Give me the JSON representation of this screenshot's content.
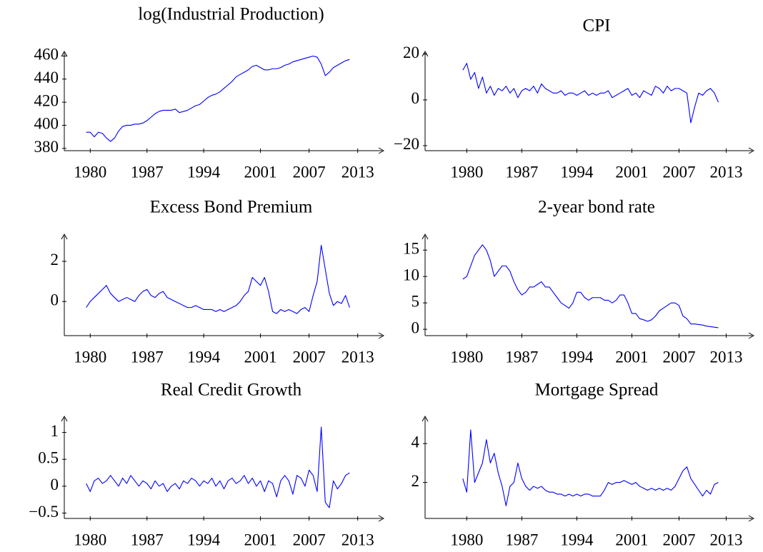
{
  "chart_data": [
    {
      "type": "line",
      "title": "log(Industrial Production)",
      "color": "#0000ff",
      "x": [
        1979.5,
        1980,
        1980.5,
        1981,
        1981.5,
        1982,
        1982.5,
        1983,
        1983.5,
        1984,
        1984.5,
        1985,
        1985.5,
        1986,
        1986.5,
        1987,
        1987.5,
        1988,
        1988.5,
        1989,
        1989.5,
        1990,
        1990.5,
        1991,
        1991.5,
        1992,
        1992.5,
        1993,
        1993.5,
        1994,
        1994.5,
        1995,
        1995.5,
        1996,
        1996.5,
        1997,
        1997.5,
        1998,
        1998.5,
        1999,
        1999.5,
        2000,
        2000.5,
        2001,
        2001.5,
        2002,
        2002.5,
        2003,
        2003.5,
        2004,
        2004.5,
        2005,
        2005.5,
        2006,
        2006.5,
        2007,
        2007.5,
        2008,
        2008.5,
        2009,
        2009.5,
        2010,
        2010.5,
        2011,
        2011.5,
        2012
      ],
      "values": [
        394,
        394,
        390,
        394,
        393,
        389,
        386,
        389,
        395,
        399,
        400,
        400,
        401,
        401,
        402,
        404,
        407,
        410,
        412,
        413,
        413,
        413,
        414,
        411,
        412,
        413,
        415,
        417,
        418,
        421,
        424,
        426,
        427,
        429,
        432,
        435,
        438,
        442,
        444,
        446,
        448,
        451,
        452,
        450,
        448,
        448,
        449,
        449,
        450,
        452,
        453,
        455,
        456,
        457,
        458,
        459,
        460,
        459,
        453,
        443,
        446,
        450,
        452,
        454,
        456,
        457
      ],
      "xlim": [
        1976.8,
        2016.2
      ],
      "xticks": [
        1980,
        1987,
        1994,
        2001,
        2007,
        2013
      ],
      "ylim": [
        378,
        464
      ],
      "yticks": [
        380,
        400,
        420,
        440,
        460
      ]
    },
    {
      "type": "line",
      "title": "CPI",
      "color": "#0000ff",
      "x": [
        1979.5,
        1980,
        1980.5,
        1981,
        1981.5,
        1982,
        1982.5,
        1983,
        1983.5,
        1984,
        1984.5,
        1985,
        1985.5,
        1986,
        1986.5,
        1987,
        1987.5,
        1988,
        1988.5,
        1989,
        1989.5,
        1990,
        1990.5,
        1991,
        1991.5,
        1992,
        1992.5,
        1993,
        1993.5,
        1994,
        1994.5,
        1995,
        1995.5,
        1996,
        1996.5,
        1997,
        1997.5,
        1998,
        1998.5,
        1999,
        1999.5,
        2000,
        2000.5,
        2001,
        2001.5,
        2002,
        2002.5,
        2003,
        2003.5,
        2004,
        2004.5,
        2005,
        2005.5,
        2006,
        2006.5,
        2007,
        2007.5,
        2008,
        2008.5,
        2009,
        2009.5,
        2010,
        2010.5,
        2011,
        2011.5,
        2012
      ],
      "values": [
        13,
        16,
        9,
        12,
        5,
        10,
        3,
        6,
        2,
        5,
        4,
        6,
        3,
        5,
        1,
        4,
        5,
        4,
        6,
        3,
        7,
        5,
        4,
        3,
        3,
        4,
        2,
        3,
        3,
        2,
        3,
        4,
        2,
        3,
        2,
        3,
        3,
        4,
        1,
        2,
        3,
        4,
        5,
        2,
        3,
        1,
        4,
        3,
        2,
        6,
        5,
        3,
        6,
        4,
        5,
        5,
        4,
        3,
        -10,
        -3,
        3,
        2,
        4,
        5,
        3,
        -1
      ],
      "xlim": [
        1974.7,
        2016.5
      ],
      "xticks": [
        1980,
        1987,
        1994,
        2001,
        2007,
        2013
      ],
      "ylim": [
        -22.2,
        21.2
      ],
      "yticks": [
        {
          "value": -20,
          "label": "−20"
        },
        0,
        20
      ]
    },
    {
      "type": "line",
      "title": "Excess Bond Premium",
      "color": "#0000ff",
      "x": [
        1979.5,
        1980,
        1980.5,
        1981,
        1981.5,
        1982,
        1982.5,
        1983,
        1983.5,
        1984,
        1984.5,
        1985,
        1985.5,
        1986,
        1986.5,
        1987,
        1987.5,
        1988,
        1988.5,
        1989,
        1989.5,
        1990,
        1990.5,
        1991,
        1991.5,
        1992,
        1992.5,
        1993,
        1993.5,
        1994,
        1994.5,
        1995,
        1995.5,
        1996,
        1996.5,
        1997,
        1997.5,
        1998,
        1998.5,
        1999,
        1999.5,
        2000,
        2000.5,
        2001,
        2001.5,
        2002,
        2002.5,
        2003,
        2003.5,
        2004,
        2004.5,
        2005,
        2005.5,
        2006,
        2006.5,
        2007,
        2007.5,
        2008,
        2008.5,
        2009,
        2009.5,
        2010,
        2010.5,
        2011,
        2011.5,
        2012
      ],
      "values": [
        -0.3,
        0,
        0.2,
        0.4,
        0.6,
        0.8,
        0.4,
        0.2,
        0,
        0.1,
        0.2,
        0.1,
        0,
        0.3,
        0.5,
        0.6,
        0.3,
        0.2,
        0.4,
        0.5,
        0.2,
        0.1,
        0,
        -0.1,
        -0.2,
        -0.3,
        -0.3,
        -0.2,
        -0.3,
        -0.4,
        -0.4,
        -0.4,
        -0.5,
        -0.4,
        -0.5,
        -0.4,
        -0.3,
        -0.2,
        0,
        0.3,
        0.5,
        1.2,
        1.0,
        0.8,
        1.2,
        0.5,
        -0.5,
        -0.6,
        -0.4,
        -0.5,
        -0.4,
        -0.5,
        -0.6,
        -0.4,
        -0.3,
        -0.5,
        0.3,
        1.0,
        2.8,
        1.6,
        0.4,
        -0.2,
        0,
        -0.1,
        0.3,
        -0.3
      ],
      "xlim": [
        1976.8,
        2016.2
      ],
      "xticks": [
        1980,
        1987,
        1994,
        2001,
        2007,
        2013
      ],
      "ylim": [
        -1.7,
        3.35
      ],
      "yticks": [
        0,
        2
      ]
    },
    {
      "type": "line",
      "title": "2-year bond rate",
      "color": "#0000ff",
      "x": [
        1979.5,
        1980,
        1980.5,
        1981,
        1981.5,
        1982,
        1982.5,
        1983,
        1983.5,
        1984,
        1984.5,
        1985,
        1985.5,
        1986,
        1986.5,
        1987,
        1987.5,
        1988,
        1988.5,
        1989,
        1989.5,
        1990,
        1990.5,
        1991,
        1991.5,
        1992,
        1992.5,
        1993,
        1993.5,
        1994,
        1994.5,
        1995,
        1995.5,
        1996,
        1996.5,
        1997,
        1997.5,
        1998,
        1998.5,
        1999,
        1999.5,
        2000,
        2000.5,
        2001,
        2001.5,
        2002,
        2002.5,
        2003,
        2003.5,
        2004,
        2004.5,
        2005,
        2005.5,
        2006,
        2006.5,
        2007,
        2007.5,
        2008,
        2008.5,
        2009,
        2009.5,
        2010,
        2010.5,
        2011,
        2011.5,
        2012
      ],
      "values": [
        9.5,
        10,
        12,
        14,
        15,
        16,
        15,
        13,
        10,
        11,
        12,
        12,
        11,
        9,
        7.5,
        6.5,
        7,
        8,
        8,
        8.5,
        9,
        8,
        8,
        7,
        6,
        5,
        4.5,
        4,
        5,
        7,
        7,
        6,
        5.5,
        6,
        6,
        6,
        5.5,
        5.5,
        5,
        5.5,
        6.5,
        6.5,
        5,
        3,
        3,
        2,
        1.8,
        1.5,
        1.8,
        2.5,
        3.5,
        4,
        4.5,
        5,
        5,
        4.5,
        2.5,
        2,
        1,
        1,
        0.9,
        0.8,
        0.6,
        0.5,
        0.4,
        0.3
      ],
      "xlim": [
        1974.7,
        2016.5
      ],
      "xticks": [
        1980,
        1987,
        1994,
        2001,
        2007,
        2013
      ],
      "ylim": [
        -1.2,
        18
      ],
      "yticks": [
        0,
        5,
        10,
        15
      ]
    },
    {
      "type": "line",
      "title": "Real Credit Growth",
      "color": "#0000ff",
      "x": [
        1979.5,
        1980,
        1980.5,
        1981,
        1981.5,
        1982,
        1982.5,
        1983,
        1983.5,
        1984,
        1984.5,
        1985,
        1985.5,
        1986,
        1986.5,
        1987,
        1987.5,
        1988,
        1988.5,
        1989,
        1989.5,
        1990,
        1990.5,
        1991,
        1991.5,
        1992,
        1992.5,
        1993,
        1993.5,
        1994,
        1994.5,
        1995,
        1995.5,
        1996,
        1996.5,
        1997,
        1997.5,
        1998,
        1998.5,
        1999,
        1999.5,
        2000,
        2000.5,
        2001,
        2001.5,
        2002,
        2002.5,
        2003,
        2003.5,
        2004,
        2004.5,
        2005,
        2005.5,
        2006,
        2006.5,
        2007,
        2007.5,
        2008,
        2008.5,
        2009,
        2009.5,
        2010,
        2010.5,
        2011,
        2011.5,
        2012
      ],
      "values": [
        0.05,
        -0.1,
        0.1,
        0.15,
        0.05,
        0.1,
        0.2,
        0.1,
        0,
        0.15,
        0.05,
        0.2,
        0.1,
        0,
        0.1,
        0.05,
        -0.05,
        0.1,
        0,
        0.05,
        -0.1,
        0,
        0.05,
        -0.05,
        0.1,
        0.05,
        0.15,
        0.1,
        0,
        0.1,
        0.05,
        0.15,
        0,
        0.1,
        -0.05,
        0.1,
        0.15,
        0.05,
        0.1,
        0.2,
        0.05,
        0.15,
        0,
        0.1,
        -0.1,
        0.1,
        0.05,
        -0.2,
        0.1,
        0.2,
        0.1,
        -0.15,
        0.2,
        0.15,
        0,
        0.3,
        0.2,
        -0.1,
        1.1,
        -0.3,
        -0.4,
        0.1,
        -0.05,
        0.05,
        0.2,
        0.25
      ],
      "xlim": [
        1976.8,
        2016.2
      ],
      "xticks": [
        1980,
        1987,
        1994,
        2001,
        2007,
        2013
      ],
      "ylim": [
        -0.6,
        1.3
      ],
      "yticks": [
        {
          "value": -0.5,
          "label": "−0.5"
        },
        0,
        0.5,
        1
      ]
    },
    {
      "type": "line",
      "title": "Mortgage Spread",
      "color": "#0000ff",
      "x": [
        1979.5,
        1980,
        1980.5,
        1981,
        1981.5,
        1982,
        1982.5,
        1983,
        1983.5,
        1984,
        1984.5,
        1985,
        1985.5,
        1986,
        1986.5,
        1987,
        1987.5,
        1988,
        1988.5,
        1989,
        1989.5,
        1990,
        1990.5,
        1991,
        1991.5,
        1992,
        1992.5,
        1993,
        1993.5,
        1994,
        1994.5,
        1995,
        1995.5,
        1996,
        1996.5,
        1997,
        1997.5,
        1998,
        1998.5,
        1999,
        1999.5,
        2000,
        2000.5,
        2001,
        2001.5,
        2002,
        2002.5,
        2003,
        2003.5,
        2004,
        2004.5,
        2005,
        2005.5,
        2006,
        2006.5,
        2007,
        2007.5,
        2008,
        2008.5,
        2009,
        2009.5,
        2010,
        2010.5,
        2011,
        2011.5,
        2012
      ],
      "values": [
        2.2,
        1.5,
        4.7,
        2,
        2.5,
        3,
        4.2,
        3,
        3.5,
        2.5,
        1.8,
        0.8,
        1.8,
        2,
        3,
        2.2,
        1.8,
        1.6,
        1.8,
        1.7,
        1.8,
        1.6,
        1.5,
        1.5,
        1.4,
        1.4,
        1.3,
        1.4,
        1.3,
        1.4,
        1.3,
        1.4,
        1.4,
        1.3,
        1.3,
        1.3,
        1.6,
        2,
        1.9,
        2,
        2,
        2.1,
        2,
        1.9,
        2,
        1.8,
        1.7,
        1.6,
        1.7,
        1.6,
        1.7,
        1.6,
        1.7,
        1.6,
        1.8,
        2.2,
        2.6,
        2.8,
        2.2,
        1.9,
        1.6,
        1.3,
        1.6,
        1.4,
        1.9,
        2
      ],
      "xlim": [
        1974.7,
        2016.5
      ],
      "xticks": [
        1980,
        1987,
        1994,
        2001,
        2007,
        2013
      ],
      "ylim": [
        0.15,
        5.4
      ],
      "yticks": [
        2,
        4
      ]
    }
  ]
}
